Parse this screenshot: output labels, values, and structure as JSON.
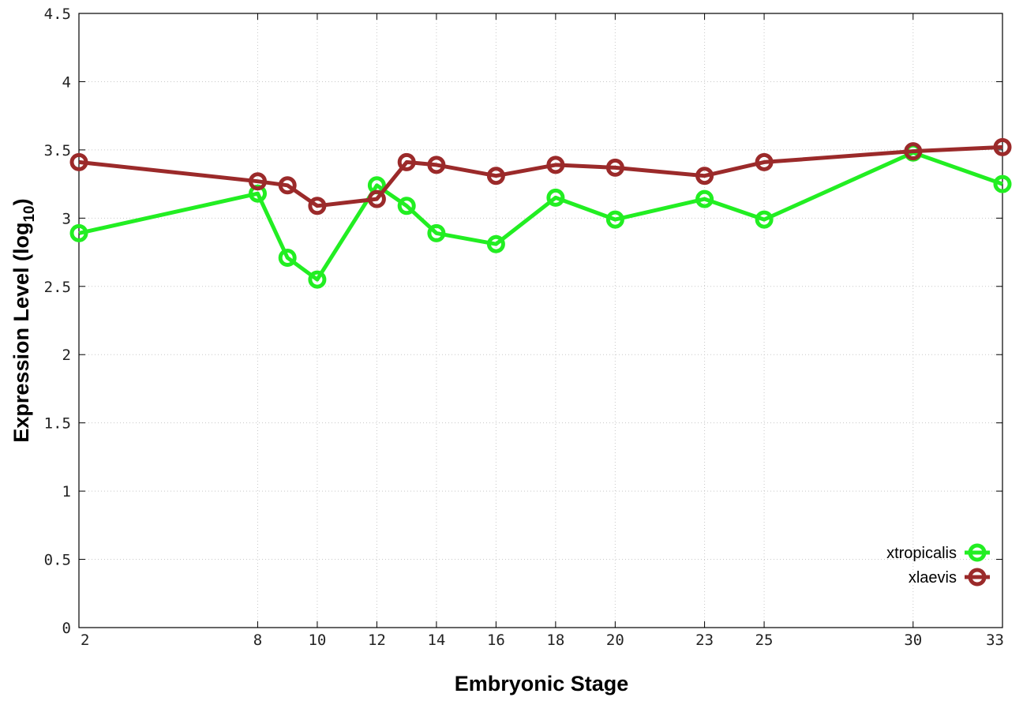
{
  "chart_data": {
    "type": "line",
    "xlabel": "Embryonic Stage",
    "ylabel_main": "Expression Level (log",
    "ylabel_sub": "10",
    "ylabel_close": ")",
    "xlim": [
      2,
      33
    ],
    "ylim": [
      0,
      4.5
    ],
    "x_ticks": [
      2,
      8,
      10,
      12,
      14,
      16,
      18,
      20,
      23,
      25,
      30,
      33
    ],
    "y_ticks": [
      0,
      0.5,
      1,
      1.5,
      2,
      2.5,
      3,
      3.5,
      4,
      4.5
    ],
    "y_tick_labels": [
      "0",
      "0.5",
      "1",
      "1.5",
      "2",
      "2.5",
      "3",
      "3.5",
      "4",
      "4.5"
    ],
    "grid": true,
    "legend_position": "bottom-right",
    "series": [
      {
        "name": "xtropicalis",
        "color": "#22ee22",
        "x": [
          2,
          8,
          9,
          10,
          12,
          13,
          14,
          16,
          18,
          20,
          23,
          25,
          30,
          33
        ],
        "y": [
          2.89,
          3.18,
          2.71,
          2.55,
          3.24,
          3.09,
          2.89,
          2.81,
          3.15,
          2.99,
          3.14,
          2.99,
          3.48,
          3.25
        ]
      },
      {
        "name": "xlaevis",
        "color": "#9b2a2a",
        "x": [
          2,
          8,
          9,
          10,
          12,
          13,
          14,
          16,
          18,
          20,
          23,
          25,
          30,
          33
        ],
        "y": [
          3.41,
          3.27,
          3.24,
          3.09,
          3.14,
          3.41,
          3.39,
          3.31,
          3.39,
          3.37,
          3.31,
          3.41,
          3.49,
          3.52
        ]
      }
    ]
  }
}
